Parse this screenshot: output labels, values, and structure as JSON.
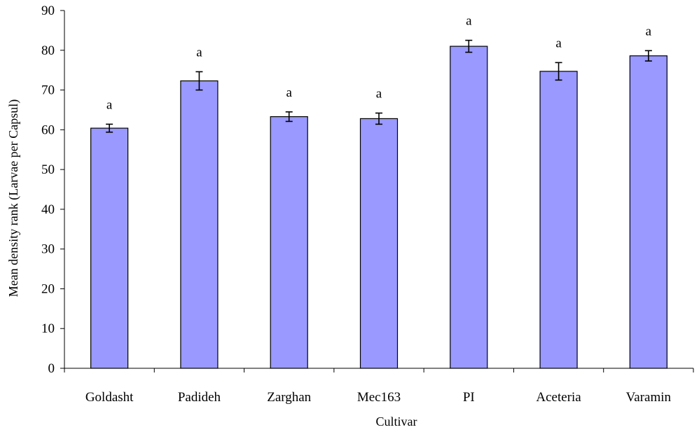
{
  "chart_data": {
    "type": "bar",
    "title": "",
    "xlabel": "Cultivar",
    "ylabel": "Mean density rank (Larvae per Capsul)",
    "ylim": [
      0,
      90
    ],
    "yticks": [
      0,
      10,
      20,
      30,
      40,
      50,
      60,
      70,
      80,
      90
    ],
    "categories": [
      "Goldasht",
      "Padideh",
      "Zarghan",
      "Mec163",
      "PI",
      "Aceteria",
      "Varamin"
    ],
    "values": [
      60.4,
      72.3,
      63.3,
      62.8,
      81.0,
      74.7,
      78.6
    ],
    "error": [
      1.0,
      2.3,
      1.2,
      1.4,
      1.5,
      2.2,
      1.3
    ],
    "significance": [
      "a",
      "a",
      "a",
      "a",
      "a",
      "a",
      "a"
    ],
    "grid": false,
    "colors": {
      "bar": "#9999ff",
      "outline": "#000000"
    }
  }
}
